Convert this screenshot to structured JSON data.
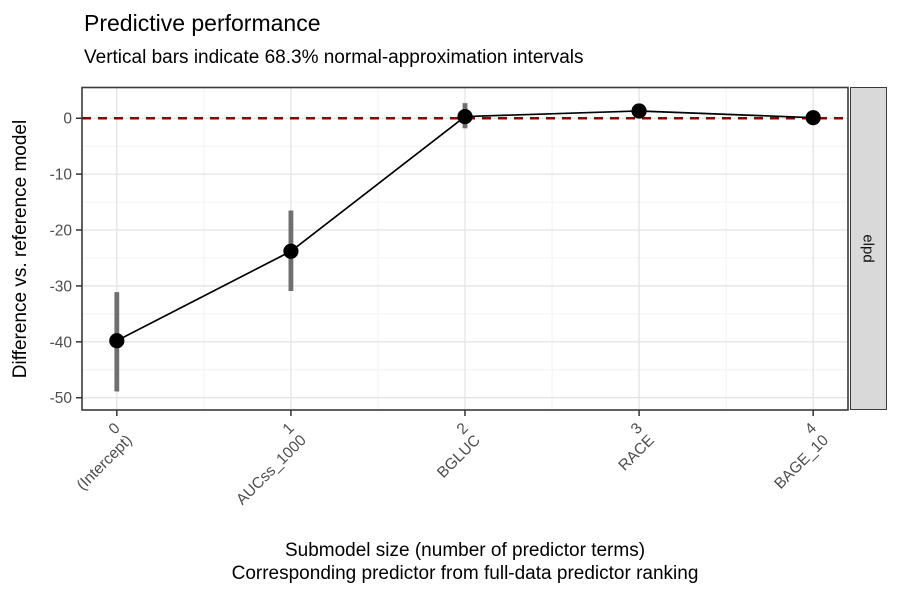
{
  "chart_data": {
    "type": "line",
    "title": "Predictive performance",
    "subtitle": "Vertical bars indicate 68.3% normal-approximation intervals",
    "ylabel": "Difference vs. reference model",
    "xlabel_line1": "Submodel size (number of predictor terms)",
    "xlabel_line2": "Corresponding predictor from full-data predictor ranking",
    "facet_label": "elpd",
    "x": [
      0,
      1,
      2,
      3,
      4
    ],
    "x_tick_labels": [
      [
        "0",
        "(Intercept)"
      ],
      [
        "1",
        "AUCss_1000"
      ],
      [
        "2",
        "BGLUC"
      ],
      [
        "3",
        "RACE"
      ],
      [
        "4",
        "BAGE_10"
      ]
    ],
    "series": [
      {
        "name": "elpd difference vs. reference model",
        "values": [
          -39.8,
          -23.8,
          0.3,
          1.3,
          0.1
        ]
      }
    ],
    "intervals_68_3_percent": [
      [
        -48.9,
        -31.1
      ],
      [
        -30.9,
        -16.5
      ],
      [
        -1.8,
        2.7
      ],
      [
        0.0,
        2.6
      ],
      [
        -1.0,
        1.2
      ]
    ],
    "reference_line_y": 0,
    "y_ticks": [
      0,
      -10,
      -20,
      -30,
      -40,
      -50
    ],
    "y_minor_ticks": [
      -5,
      -15,
      -25,
      -35,
      -45
    ],
    "x_minor_ticks": [
      0.5,
      1.5,
      2.5,
      3.5
    ],
    "ylim": [
      -52.2,
      5.5
    ],
    "xlim": [
      -0.2,
      4.2
    ],
    "grid": "major and minor, light gray on white panel",
    "legend": "none",
    "colors": {
      "point": "#000000",
      "line": "#000000",
      "interval_bar": "#6f6f6f",
      "reference_line": "#8b0000",
      "grid_major": "#e4e4e4",
      "grid_minor": "#f1f1f1",
      "panel_border": "#3a3a3a",
      "axis_tick": "#333333",
      "tick_text": "#4d4d4d",
      "strip_fill": "#d9d9d9",
      "title_text": "#000000"
    }
  }
}
